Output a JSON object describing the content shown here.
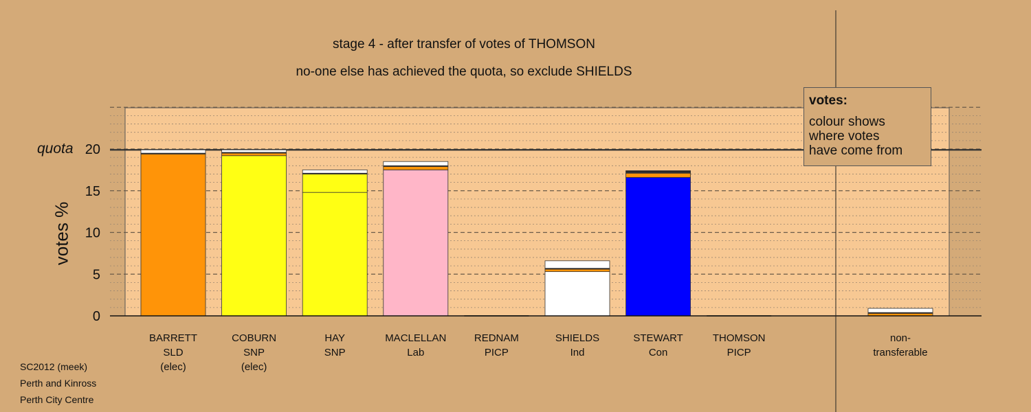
{
  "chart_data": {
    "type": "bar",
    "title": "stage 4 - after transfer of votes of THOMSON",
    "subtitle": "no-one else has achieved the quota, so exclude SHIELDS",
    "ylabel": "votes %",
    "ylim": [
      0,
      20
    ],
    "yticks": [
      "0",
      "5",
      "10",
      "15",
      "20"
    ],
    "quota": 19.9,
    "quota_label": "quota",
    "grid": true,
    "candidates": [
      {
        "name": "BARRETT",
        "party": "SLD",
        "note": "(elec)",
        "total": 20.0,
        "segments": [
          {
            "value": 19.4,
            "color": "#ff9408"
          },
          {
            "value": 0.1,
            "color": "#111111"
          },
          {
            "value": 0.4,
            "color": "#ffffff"
          }
        ]
      },
      {
        "name": "COBURN",
        "party": "SNP",
        "note": "(elec)",
        "total": 19.9,
        "segments": [
          {
            "value": 19.2,
            "color": "#ffff14"
          },
          {
            "value": 0.3,
            "color": "#ff9408"
          },
          {
            "value": 0.1,
            "color": "#111111"
          },
          {
            "value": 0.3,
            "color": "#ffffff"
          }
        ]
      },
      {
        "name": "HAY",
        "party": "SNP",
        "note": "",
        "total": 17.5,
        "segments": [
          {
            "value": 14.8,
            "color": "#ffff14"
          },
          {
            "value": 2.2,
            "color": "#ffff14"
          },
          {
            "value": 0.1,
            "color": "#111111"
          },
          {
            "value": 0.4,
            "color": "#ffffff"
          }
        ]
      },
      {
        "name": "MACLELLAN",
        "party": "Lab",
        "note": "",
        "total": 18.5,
        "segments": [
          {
            "value": 17.5,
            "color": "#ffb6c8"
          },
          {
            "value": 0.4,
            "color": "#ff9408"
          },
          {
            "value": 0.1,
            "color": "#111111"
          },
          {
            "value": 0.5,
            "color": "#ffffff"
          }
        ]
      },
      {
        "name": "REDNAM",
        "party": "PICP",
        "note": "",
        "total": 0,
        "segments": []
      },
      {
        "name": "SHIELDS",
        "party": "Ind",
        "note": "",
        "total": 6.6,
        "segments": [
          {
            "value": 5.3,
            "color": "#ffffff"
          },
          {
            "value": 0.3,
            "color": "#ff9408"
          },
          {
            "value": 0.1,
            "color": "#111111"
          },
          {
            "value": 0.9,
            "color": "#ffffff"
          }
        ]
      },
      {
        "name": "STEWART",
        "party": "Con",
        "note": "",
        "total": 17.4,
        "segments": [
          {
            "value": 16.6,
            "color": "#0000ff"
          },
          {
            "value": 0.5,
            "color": "#ff9408"
          },
          {
            "value": 0.2,
            "color": "#333333"
          },
          {
            "value": 0.1,
            "color": "#111111"
          }
        ]
      },
      {
        "name": "THOMSON",
        "party": "PICP",
        "note": "",
        "total": 0,
        "segments": []
      }
    ],
    "nontransferable": {
      "label_line1": "non-",
      "label_line2": "transferable",
      "total": 0.9,
      "segments": [
        {
          "value": 0.3,
          "color": "#ff9408"
        },
        {
          "value": 0.1,
          "color": "#111111"
        },
        {
          "value": 0.5,
          "color": "#ffffff"
        }
      ]
    }
  },
  "legend": {
    "title": "votes:",
    "lines": [
      "colour shows",
      "where votes",
      "have come from"
    ]
  },
  "footer": {
    "line1": "SC2012 (meek)",
    "line2": "Perth and Kinross",
    "line3": "Perth City Centre"
  },
  "colors": {
    "background": "#d4aa78",
    "plot_area": "#f7c893",
    "SLD": "#ff9408",
    "SNP": "#ffff14",
    "Lab": "#ffb6c8",
    "Ind": "#ffffff",
    "Con": "#0000ff"
  }
}
